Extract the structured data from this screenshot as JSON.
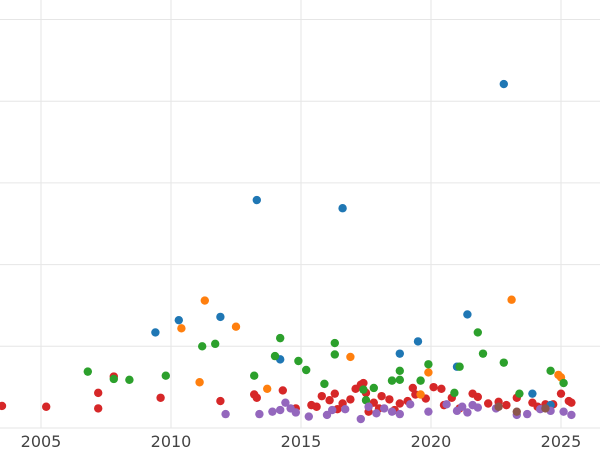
{
  "chart_data": {
    "type": "scatter",
    "title": "",
    "xlabel": "",
    "ylabel": "",
    "xlim": [
      2002.5,
      2026.5
    ],
    "ylim": [
      0,
      53
    ],
    "grid": true,
    "legend": "none",
    "x_ticks": [
      2005,
      2010,
      2015,
      2020,
      2025
    ],
    "x_tick_labels": [
      "2005",
      "2010",
      "2015",
      "2020",
      "2025"
    ],
    "y_gridlines": [
      0,
      10,
      20,
      30,
      40,
      50
    ],
    "series": [
      {
        "color": "#d62728",
        "points": [
          [
            2003.5,
            2.7
          ],
          [
            2005.2,
            2.6
          ],
          [
            2007.2,
            2.4
          ],
          [
            2007.2,
            4.3
          ],
          [
            2007.8,
            6.3
          ],
          [
            2009.6,
            3.7
          ],
          [
            2011.9,
            3.3
          ],
          [
            2013.2,
            4.1
          ],
          [
            2013.3,
            3.7
          ],
          [
            2014.3,
            4.6
          ],
          [
            2014.8,
            2.4
          ],
          [
            2015.4,
            2.8
          ],
          [
            2015.6,
            2.6
          ],
          [
            2015.8,
            3.9
          ],
          [
            2016.1,
            3.4
          ],
          [
            2016.3,
            4.2
          ],
          [
            2016.4,
            2.3
          ],
          [
            2016.6,
            3.0
          ],
          [
            2016.9,
            3.5
          ],
          [
            2017.1,
            4.8
          ],
          [
            2017.3,
            5.3
          ],
          [
            2017.5,
            4.3
          ],
          [
            2017.6,
            2.0
          ],
          [
            2017.8,
            3.1
          ],
          [
            2018.0,
            2.4
          ],
          [
            2018.1,
            3.9
          ],
          [
            2018.4,
            3.5
          ],
          [
            2018.6,
            2.2
          ],
          [
            2018.8,
            3.0
          ],
          [
            2019.1,
            3.3
          ],
          [
            2019.4,
            4.1
          ],
          [
            2019.8,
            3.6
          ],
          [
            2020.1,
            5.0
          ],
          [
            2020.4,
            4.8
          ],
          [
            2020.5,
            2.8
          ],
          [
            2020.8,
            3.7
          ],
          [
            2021.1,
            2.4
          ],
          [
            2021.6,
            4.2
          ],
          [
            2021.8,
            3.8
          ],
          [
            2022.2,
            3.0
          ],
          [
            2022.6,
            3.2
          ],
          [
            2022.9,
            2.8
          ],
          [
            2023.3,
            3.7
          ],
          [
            2023.9,
            3.1
          ],
          [
            2024.1,
            2.6
          ],
          [
            2024.4,
            2.9
          ],
          [
            2024.7,
            2.9
          ],
          [
            2025.0,
            4.2
          ],
          [
            2025.3,
            3.3
          ],
          [
            2025.4,
            3.1
          ],
          [
            2019.3,
            4.9
          ],
          [
            2017.4,
            5.5
          ]
        ]
      },
      {
        "color": "#1f77b4",
        "points": [
          [
            2009.4,
            11.7
          ],
          [
            2010.3,
            13.2
          ],
          [
            2011.9,
            13.6
          ],
          [
            2013.3,
            27.9
          ],
          [
            2014.2,
            8.4
          ],
          [
            2016.6,
            26.9
          ],
          [
            2018.8,
            9.1
          ],
          [
            2019.5,
            10.6
          ],
          [
            2021.0,
            7.5
          ],
          [
            2021.4,
            13.9
          ],
          [
            2022.8,
            42.1
          ],
          [
            2023.9,
            4.2
          ],
          [
            2024.6,
            2.8
          ]
        ]
      },
      {
        "color": "#ff7f0e",
        "points": [
          [
            2010.4,
            12.2
          ],
          [
            2011.1,
            5.6
          ],
          [
            2011.3,
            15.6
          ],
          [
            2012.5,
            12.4
          ],
          [
            2013.7,
            4.8
          ],
          [
            2016.9,
            8.7
          ],
          [
            2019.6,
            4.1
          ],
          [
            2019.9,
            6.8
          ],
          [
            2023.1,
            15.7
          ],
          [
            2024.9,
            6.5
          ],
          [
            2025.0,
            6.2
          ]
        ]
      },
      {
        "color": "#2ca02c",
        "points": [
          [
            2006.8,
            6.9
          ],
          [
            2007.8,
            6.0
          ],
          [
            2008.4,
            5.9
          ],
          [
            2009.8,
            6.4
          ],
          [
            2011.2,
            10.0
          ],
          [
            2011.7,
            10.3
          ],
          [
            2013.2,
            6.4
          ],
          [
            2014.0,
            8.8
          ],
          [
            2014.2,
            11.0
          ],
          [
            2014.9,
            8.2
          ],
          [
            2015.2,
            7.1
          ],
          [
            2015.9,
            5.4
          ],
          [
            2016.3,
            10.4
          ],
          [
            2016.3,
            9.0
          ],
          [
            2017.4,
            4.7
          ],
          [
            2017.5,
            3.4
          ],
          [
            2017.8,
            4.9
          ],
          [
            2018.5,
            5.8
          ],
          [
            2018.8,
            7.0
          ],
          [
            2018.8,
            5.9
          ],
          [
            2019.6,
            5.8
          ],
          [
            2019.9,
            7.8
          ],
          [
            2020.9,
            4.3
          ],
          [
            2021.1,
            7.5
          ],
          [
            2021.8,
            11.7
          ],
          [
            2022.0,
            9.1
          ],
          [
            2022.8,
            8.0
          ],
          [
            2023.4,
            4.2
          ],
          [
            2024.6,
            7.0
          ],
          [
            2025.1,
            5.5
          ]
        ]
      },
      {
        "color": "#9467bd",
        "points": [
          [
            2012.1,
            1.7
          ],
          [
            2013.4,
            1.7
          ],
          [
            2013.9,
            2.0
          ],
          [
            2014.2,
            2.2
          ],
          [
            2014.4,
            3.1
          ],
          [
            2014.6,
            2.4
          ],
          [
            2014.8,
            1.9
          ],
          [
            2015.3,
            1.4
          ],
          [
            2016.0,
            1.6
          ],
          [
            2016.2,
            2.2
          ],
          [
            2016.7,
            2.3
          ],
          [
            2017.3,
            1.1
          ],
          [
            2017.6,
            2.6
          ],
          [
            2017.9,
            1.8
          ],
          [
            2018.2,
            2.4
          ],
          [
            2018.5,
            2.0
          ],
          [
            2018.8,
            1.7
          ],
          [
            2019.2,
            2.9
          ],
          [
            2019.9,
            2.0
          ],
          [
            2020.6,
            2.9
          ],
          [
            2021.0,
            2.1
          ],
          [
            2021.2,
            2.6
          ],
          [
            2021.4,
            1.9
          ],
          [
            2021.6,
            2.8
          ],
          [
            2021.8,
            2.5
          ],
          [
            2022.5,
            2.4
          ],
          [
            2023.3,
            1.6
          ],
          [
            2023.7,
            1.7
          ],
          [
            2024.2,
            2.3
          ],
          [
            2024.6,
            2.1
          ],
          [
            2025.1,
            2.0
          ],
          [
            2025.4,
            1.6
          ]
        ]
      },
      {
        "color": "#8c564b",
        "points": [
          [
            2022.6,
            2.6
          ],
          [
            2023.3,
            2.0
          ],
          [
            2024.4,
            2.4
          ]
        ]
      }
    ]
  }
}
